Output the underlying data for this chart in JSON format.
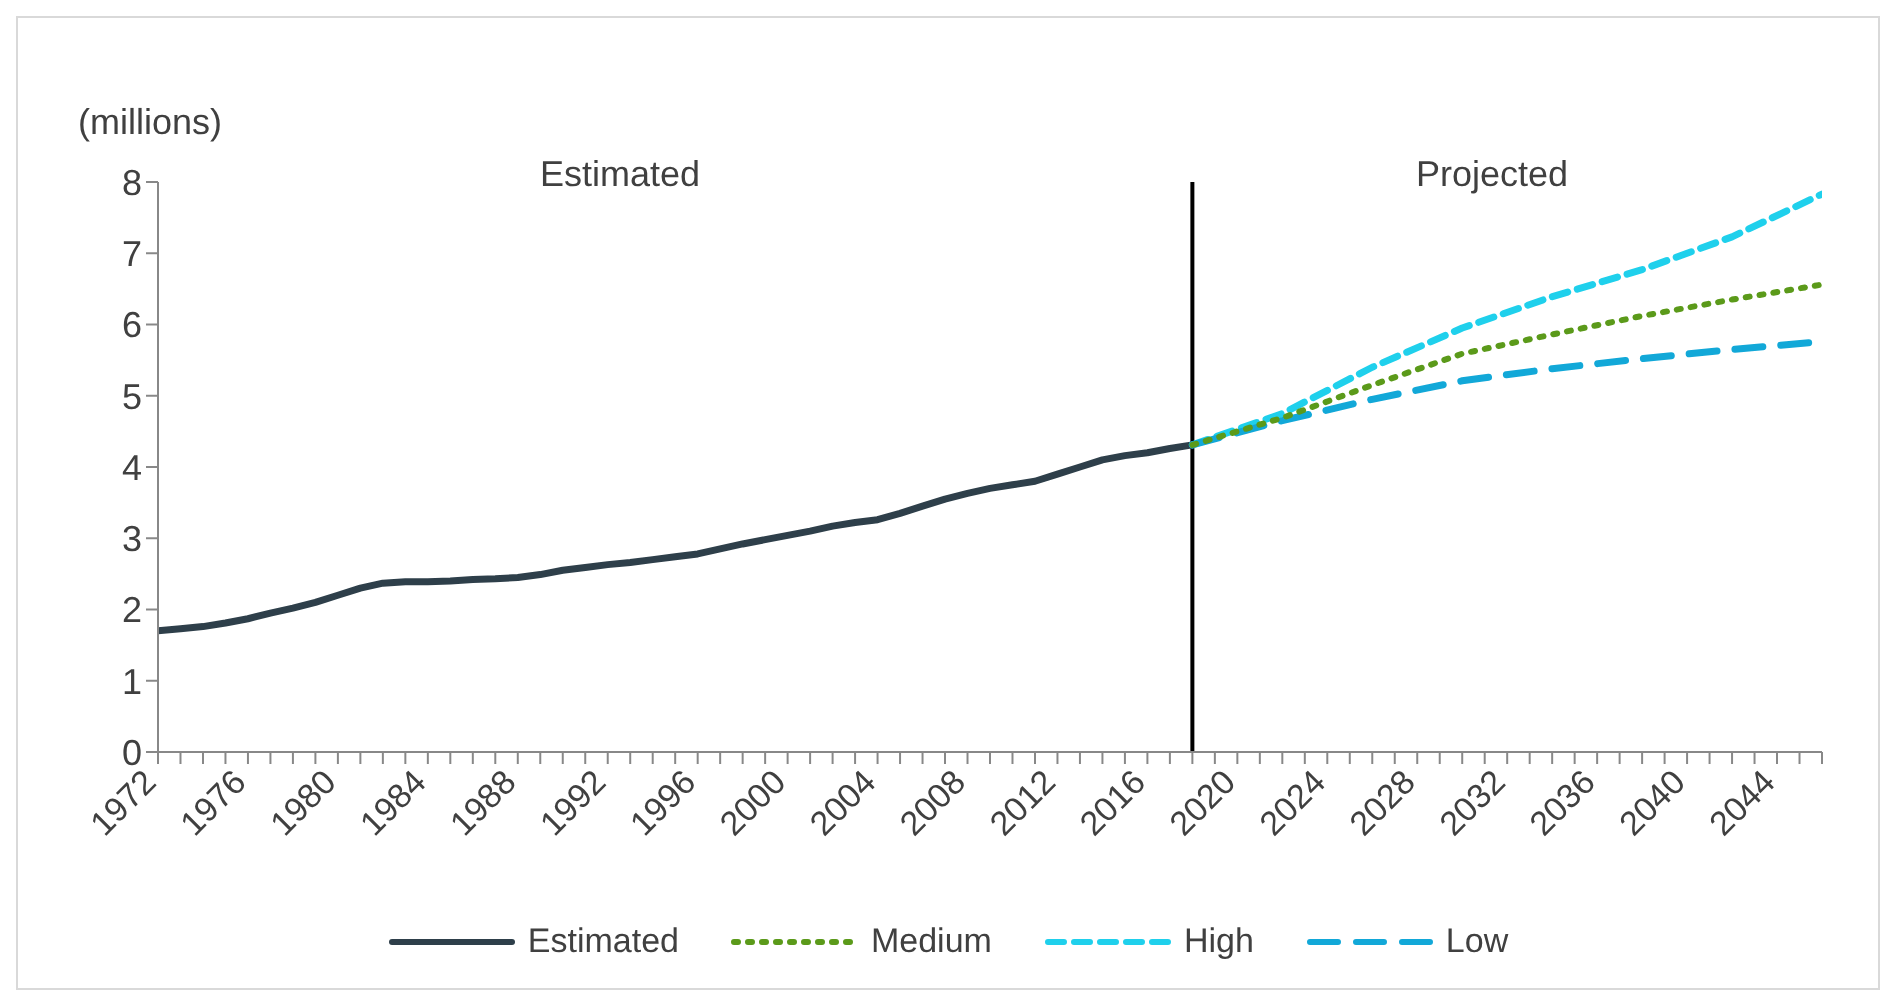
{
  "chart_data": {
    "type": "line",
    "ylabel": "(millions)",
    "annotations": [
      "Estimated",
      "Projected"
    ],
    "series": [
      {
        "name": "Estimated",
        "color": "#2e3f4a",
        "line_style": "solid",
        "x": [
          1972,
          1973,
          1974,
          1975,
          1976,
          1977,
          1978,
          1979,
          1980,
          1981,
          1982,
          1983,
          1984,
          1985,
          1986,
          1987,
          1988,
          1989,
          1990,
          1991,
          1992,
          1993,
          1994,
          1995,
          1996,
          1997,
          1998,
          1999,
          2000,
          2001,
          2002,
          2003,
          2004,
          2005,
          2006,
          2007,
          2008,
          2009,
          2010,
          2011,
          2012,
          2013,
          2014,
          2015,
          2016,
          2017,
          2018
        ],
        "values": [
          1.7,
          1.73,
          1.76,
          1.81,
          1.87,
          1.95,
          2.02,
          2.1,
          2.2,
          2.3,
          2.37,
          2.39,
          2.39,
          2.4,
          2.42,
          2.43,
          2.45,
          2.49,
          2.55,
          2.59,
          2.63,
          2.66,
          2.7,
          2.74,
          2.78,
          2.85,
          2.92,
          2.98,
          3.04,
          3.1,
          3.17,
          3.22,
          3.26,
          3.35,
          3.45,
          3.55,
          3.63,
          3.7,
          3.75,
          3.8,
          3.9,
          4.0,
          4.1,
          4.16,
          4.2,
          4.26,
          4.31
        ]
      },
      {
        "name": "Medium",
        "color": "#5b9a1a",
        "line_style": "dotted",
        "x": [
          2018,
          2022,
          2026,
          2030,
          2034,
          2038,
          2042,
          2046
        ],
        "values": [
          4.31,
          4.69,
          5.15,
          5.59,
          5.86,
          6.12,
          6.35,
          6.56
        ]
      },
      {
        "name": "High",
        "color": "#1fd0ec",
        "line_style": "dashed",
        "x": [
          2018,
          2022,
          2026,
          2030,
          2034,
          2038,
          2042,
          2046
        ],
        "values": [
          4.31,
          4.75,
          5.4,
          5.95,
          6.39,
          6.77,
          7.23,
          7.83
        ]
      },
      {
        "name": "Low",
        "color": "#12a8d8",
        "line_style": "dashed",
        "x": [
          2018,
          2022,
          2026,
          2030,
          2034,
          2038,
          2042,
          2046
        ],
        "values": [
          4.31,
          4.65,
          4.95,
          5.21,
          5.38,
          5.52,
          5.65,
          5.76
        ]
      }
    ],
    "xlim": [
      1972,
      2046
    ],
    "xticks": [
      1972,
      {
        "value": 1973,
        "label": null
      },
      {
        "value": 1974,
        "label": null
      },
      {
        "value": 1975,
        "label": null
      },
      1976,
      {
        "value": 1977,
        "label": null
      },
      {
        "value": 1978,
        "label": null
      },
      {
        "value": 1979,
        "label": null
      },
      1980,
      {
        "value": 1981,
        "label": null
      },
      {
        "value": 1982,
        "label": null
      },
      {
        "value": 1983,
        "label": null
      },
      1984,
      {
        "value": 1985,
        "label": null
      },
      {
        "value": 1986,
        "label": null
      },
      {
        "value": 1987,
        "label": null
      },
      1988,
      {
        "value": 1989,
        "label": null
      },
      {
        "value": 1990,
        "label": null
      },
      {
        "value": 1991,
        "label": null
      },
      1992,
      {
        "value": 1993,
        "label": null
      },
      {
        "value": 1994,
        "label": null
      },
      {
        "value": 1995,
        "label": null
      },
      1996,
      {
        "value": 1997,
        "label": null
      },
      {
        "value": 1998,
        "label": null
      },
      {
        "value": 1999,
        "label": null
      },
      2000,
      {
        "value": 2001,
        "label": null
      },
      {
        "value": 2002,
        "label": null
      },
      {
        "value": 2003,
        "label": null
      },
      2004,
      {
        "value": 2005,
        "label": null
      },
      {
        "value": 2006,
        "label": null
      },
      {
        "value": 2007,
        "label": null
      },
      2008,
      {
        "value": 2009,
        "label": null
      },
      {
        "value": 2010,
        "label": null
      },
      {
        "value": 2011,
        "label": null
      },
      2012,
      {
        "value": 2013,
        "label": null
      },
      {
        "value": 2014,
        "label": null
      },
      {
        "value": 2015,
        "label": null
      },
      2016,
      {
        "value": 2017,
        "label": null
      },
      {
        "value": 2018,
        "label": null
      },
      {
        "value": 2019,
        "label": null
      },
      2020,
      {
        "value": 2021,
        "label": null
      },
      {
        "value": 2022,
        "label": null
      },
      {
        "value": 2023,
        "label": null
      },
      2024,
      {
        "value": 2025,
        "label": null
      },
      {
        "value": 2026,
        "label": null
      },
      {
        "value": 2027,
        "label": null
      },
      2028,
      {
        "value": 2029,
        "label": null
      },
      {
        "value": 2030,
        "label": null
      },
      {
        "value": 2031,
        "label": null
      },
      2032,
      {
        "value": 2033,
        "label": null
      },
      {
        "value": 2034,
        "label": null
      },
      {
        "value": 2035,
        "label": null
      },
      2036,
      {
        "value": 2037,
        "label": null
      },
      {
        "value": 2038,
        "label": null
      },
      {
        "value": 2039,
        "label": null
      },
      2040,
      {
        "value": 2041,
        "label": null
      },
      {
        "value": 2042,
        "label": null
      },
      {
        "value": 2043,
        "label": null
      },
      2044,
      {
        "value": 2045,
        "label": null
      },
      {
        "value": 2046,
        "label": null
      }
    ],
    "ylim": [
      0,
      8
    ],
    "yticks": [
      0,
      1,
      2,
      3,
      4,
      5,
      6,
      7,
      8
    ],
    "ref_lines": [
      {
        "axis": "x",
        "value": 2018,
        "color": "#000000"
      }
    ],
    "grid": false,
    "legend": "bottom"
  }
}
